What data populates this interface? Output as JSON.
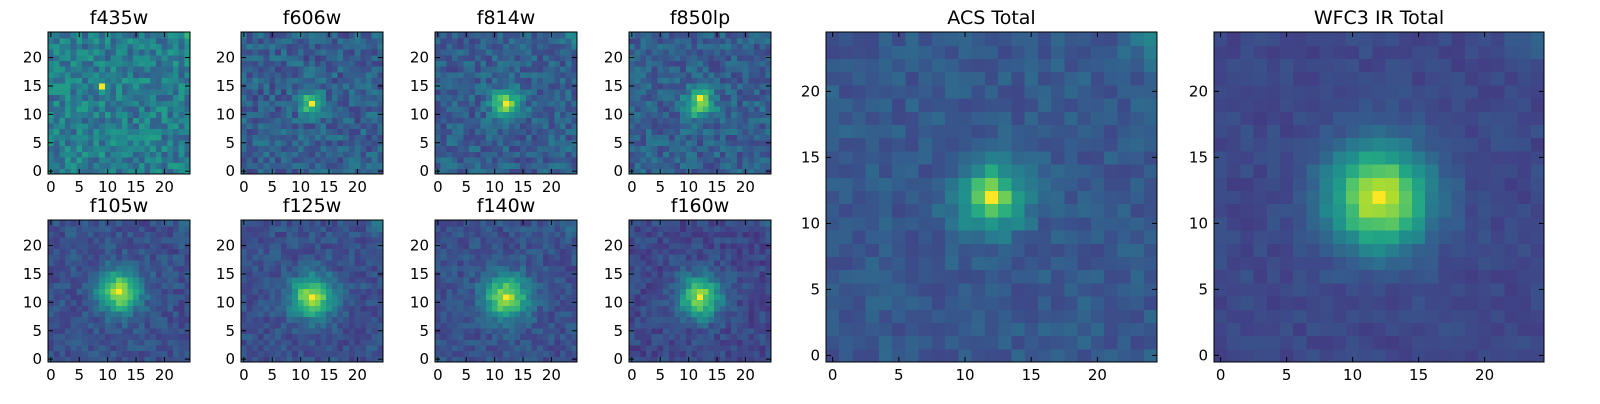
{
  "chart_data": [
    {
      "type": "heatmap",
      "title": "f435w",
      "xticks": [
        0,
        5,
        10,
        15,
        20
      ],
      "yticks": [
        0,
        5,
        10,
        15,
        20
      ],
      "xlim": [
        0,
        25
      ],
      "ylim": [
        0,
        25
      ],
      "grid": false,
      "colormap": "viridis",
      "peak": {
        "x": 9,
        "y": 15,
        "level": 1.0
      },
      "center": {
        "x": 12,
        "y": 12
      },
      "blob": {
        "sigma": 1.5,
        "amp": 0.05
      },
      "noise": 0.18,
      "base": 0.42
    },
    {
      "type": "heatmap",
      "title": "f606w",
      "xticks": [
        0,
        5,
        10,
        15,
        20
      ],
      "yticks": [
        0,
        5,
        10,
        15,
        20
      ],
      "xlim": [
        0,
        25
      ],
      "ylim": [
        0,
        25
      ],
      "grid": false,
      "colormap": "viridis",
      "peak": {
        "x": 12,
        "y": 12,
        "level": 1.0
      },
      "center": {
        "x": 12,
        "y": 12
      },
      "blob": {
        "sigma": 1.4,
        "amp": 0.5
      },
      "noise": 0.15,
      "base": 0.3
    },
    {
      "type": "heatmap",
      "title": "f814w",
      "xticks": [
        0,
        5,
        10,
        15,
        20
      ],
      "yticks": [
        0,
        5,
        10,
        15,
        20
      ],
      "xlim": [
        0,
        25
      ],
      "ylim": [
        0,
        25
      ],
      "grid": false,
      "colormap": "viridis",
      "peak": {
        "x": 12,
        "y": 12,
        "level": 1.0
      },
      "center": {
        "x": 12,
        "y": 12
      },
      "blob": {
        "sigma": 1.8,
        "amp": 0.5
      },
      "noise": 0.14,
      "base": 0.3
    },
    {
      "type": "heatmap",
      "title": "f850lp",
      "xticks": [
        0,
        5,
        10,
        15,
        20
      ],
      "yticks": [
        0,
        5,
        10,
        15,
        20
      ],
      "xlim": [
        0,
        25
      ],
      "ylim": [
        0,
        25
      ],
      "grid": false,
      "colormap": "viridis",
      "peak": {
        "x": 12,
        "y": 13,
        "level": 1.0
      },
      "center": {
        "x": 12,
        "y": 12
      },
      "blob": {
        "sigma": 1.8,
        "amp": 0.5
      },
      "noise": 0.14,
      "base": 0.3
    },
    {
      "type": "heatmap",
      "title": "f105w",
      "xticks": [
        0,
        5,
        10,
        15,
        20
      ],
      "yticks": [
        0,
        5,
        10,
        15,
        20
      ],
      "xlim": [
        0,
        25
      ],
      "ylim": [
        0,
        25
      ],
      "grid": false,
      "colormap": "viridis",
      "peak": {
        "x": 12,
        "y": 12,
        "level": 1.0
      },
      "center": {
        "x": 12,
        "y": 12
      },
      "blob": {
        "sigma": 2.6,
        "amp": 0.6
      },
      "noise": 0.1,
      "base": 0.25
    },
    {
      "type": "heatmap",
      "title": "f125w",
      "xticks": [
        0,
        5,
        10,
        15,
        20
      ],
      "yticks": [
        0,
        5,
        10,
        15,
        20
      ],
      "xlim": [
        0,
        25
      ],
      "ylim": [
        0,
        25
      ],
      "grid": false,
      "colormap": "viridis",
      "peak": {
        "x": 12,
        "y": 11,
        "level": 1.0
      },
      "center": {
        "x": 12,
        "y": 11
      },
      "blob": {
        "sigma": 2.6,
        "amp": 0.6
      },
      "noise": 0.1,
      "base": 0.25
    },
    {
      "type": "heatmap",
      "title": "f140w",
      "xticks": [
        0,
        5,
        10,
        15,
        20
      ],
      "yticks": [
        0,
        5,
        10,
        15,
        20
      ],
      "xlim": [
        0,
        25
      ],
      "ylim": [
        0,
        25
      ],
      "grid": false,
      "colormap": "viridis",
      "peak": {
        "x": 12,
        "y": 11,
        "level": 1.0
      },
      "center": {
        "x": 12,
        "y": 11
      },
      "blob": {
        "sigma": 2.7,
        "amp": 0.6
      },
      "noise": 0.1,
      "base": 0.25
    },
    {
      "type": "heatmap",
      "title": "f160w",
      "xticks": [
        0,
        5,
        10,
        15,
        20
      ],
      "yticks": [
        0,
        5,
        10,
        15,
        20
      ],
      "xlim": [
        0,
        25
      ],
      "ylim": [
        0,
        25
      ],
      "grid": false,
      "colormap": "viridis",
      "peak": {
        "x": 12,
        "y": 11,
        "level": 1.0
      },
      "center": {
        "x": 12,
        "y": 11
      },
      "blob": {
        "sigma": 2.6,
        "amp": 0.6
      },
      "noise": 0.1,
      "base": 0.22
    },
    {
      "type": "heatmap",
      "title": "ACS Total",
      "xticks": [
        0,
        5,
        10,
        15,
        20
      ],
      "yticks": [
        0,
        5,
        10,
        15,
        20
      ],
      "xlim": [
        0,
        25
      ],
      "ylim": [
        0,
        25
      ],
      "grid": false,
      "colormap": "viridis",
      "peak": {
        "x": 12,
        "y": 12,
        "level": 1.0
      },
      "center": {
        "x": 12,
        "y": 12
      },
      "blob": {
        "sigma": 1.7,
        "amp": 0.55
      },
      "noise": 0.08,
      "base": 0.28
    },
    {
      "type": "heatmap",
      "title": "WFC3 IR Total",
      "xticks": [
        0,
        5,
        10,
        15,
        20
      ],
      "yticks": [
        0,
        5,
        10,
        15,
        20
      ],
      "xlim": [
        0,
        25
      ],
      "ylim": [
        0,
        25
      ],
      "grid": false,
      "colormap": "viridis",
      "peak": {
        "x": 12,
        "y": 12,
        "level": 1.0
      },
      "center": {
        "x": 12,
        "y": 12
      },
      "blob": {
        "sigma": 2.7,
        "amp": 0.7
      },
      "noise": 0.05,
      "base": 0.22
    }
  ]
}
